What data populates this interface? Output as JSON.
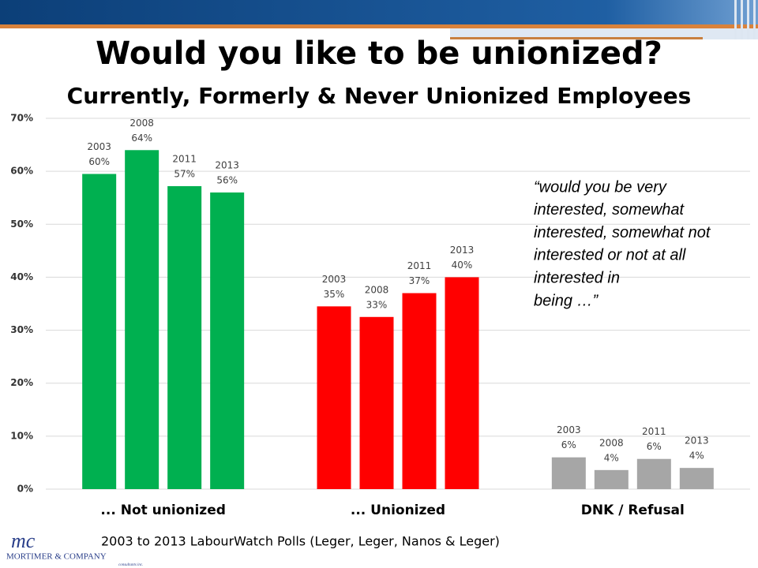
{
  "chart_data": {
    "type": "bar",
    "title": "Would you like to be unionized?",
    "subtitle": "Currently, Formerly & Never Unionized Employees",
    "categories": [
      "... Not unionized",
      "... Unionized",
      "DNK / Refusal"
    ],
    "category_colors": [
      "#00b050",
      "#ff0000",
      "#a6a6a6"
    ],
    "series": [
      {
        "name": "2003",
        "values": [
          59.5,
          34.5,
          6
        ],
        "value_labels": [
          "60%",
          "35%",
          "6%"
        ]
      },
      {
        "name": "2008",
        "values": [
          64,
          32.5,
          3.6
        ],
        "value_labels": [
          "64%",
          "33%",
          "4%"
        ]
      },
      {
        "name": "2011",
        "values": [
          57.2,
          37,
          5.7
        ],
        "value_labels": [
          "57%",
          "37%",
          "6%"
        ]
      },
      {
        "name": "2013",
        "values": [
          56,
          40,
          4
        ],
        "value_labels": [
          "56%",
          "40%",
          "4%"
        ]
      }
    ],
    "ylim": [
      0,
      70
    ],
    "yticks": [
      {
        "value": 0,
        "label": "0%"
      },
      {
        "value": 10,
        "label": "10%"
      },
      {
        "value": 20,
        "label": "20%"
      },
      {
        "value": 30,
        "label": "30%"
      },
      {
        "value": 40,
        "label": "40%"
      },
      {
        "value": 50,
        "label": "50%"
      },
      {
        "value": 60,
        "label": "60%"
      },
      {
        "value": 70,
        "label": "70%"
      }
    ],
    "grid": true,
    "annotation": [
      "“would you be very",
      "interested, somewhat",
      "interested, somewhat not",
      "interested or not at all",
      "interested in",
      "being …”"
    ],
    "source": "2003 to 2013 LabourWatch Polls (Leger, Leger, Nanos & Leger)",
    "logo": {
      "mark": "mc",
      "name": "MORTIMER & COMPANY",
      "tagline": "consultants inc."
    }
  }
}
